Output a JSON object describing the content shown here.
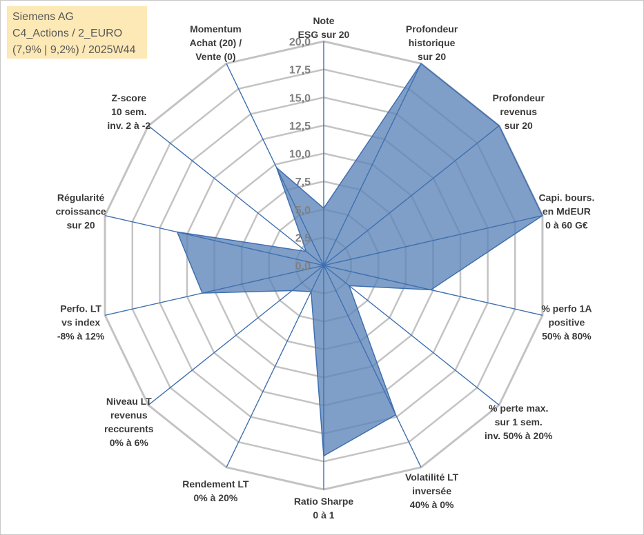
{
  "info": {
    "line1": "Siemens AG",
    "line2": "C4_Actions / 2_EURO",
    "line3": "(7,9% | 9,2%) / 2025W44"
  },
  "colors": {
    "fill": "#5b84b9",
    "line": "#3f6faf",
    "grid": "#c3c3c3",
    "info_bg": "#fde9b6"
  },
  "chart_data": {
    "type": "radar",
    "title": "",
    "rlim": [
      0,
      20
    ],
    "tick_labels": [
      "0,0",
      "2,5",
      "5,0",
      "7,5",
      "10,0",
      "12,5",
      "15,0",
      "17,5",
      "20,0"
    ],
    "grid": true,
    "legend": "none",
    "axes": [
      [
        "Note",
        "ESG sur 20"
      ],
      [
        "Profondeur",
        "historique",
        "sur 20"
      ],
      [
        "Profondeur",
        "revenus",
        "sur 20"
      ],
      [
        "Capi. bours.",
        "en MdEUR",
        "0 à 60 G€"
      ],
      [
        "% perfo 1A",
        "positive",
        "50% à 80%"
      ],
      [
        "% perte max.",
        "sur 1 sem.",
        "inv. 50% à 20%"
      ],
      [
        "Volatilité LT",
        "inversée",
        "40% à 0%"
      ],
      [
        "Ratio Sharpe",
        "0 à 1"
      ],
      [
        "Rendement LT",
        "0% à 20%"
      ],
      [
        "Niveau LT",
        "revenus",
        "reccurents",
        "0% à 6%"
      ],
      [
        "Perfo. LT",
        "vs index",
        "-8% à 12%"
      ],
      [
        "Régularité",
        "croissance",
        "sur 20"
      ],
      [
        "Z-score",
        "10 sem.",
        "inv. 2 à -2"
      ],
      [
        "Momentum",
        "Achat (20) /",
        "Vente (0)"
      ]
    ],
    "series": [
      {
        "values": [
          5.1,
          20.0,
          20.0,
          20.0,
          9.8,
          2.9,
          14.8,
          17.0,
          2.6,
          3.6,
          11.1,
          13.4,
          2.0,
          9.7
        ]
      }
    ]
  }
}
